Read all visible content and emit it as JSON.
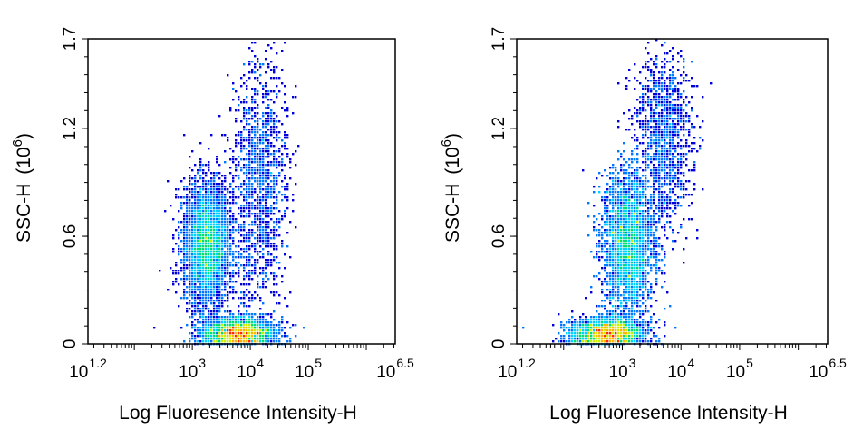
{
  "chart_data": [
    {
      "type": "scatter",
      "subtype": "flow-cytometry density plot",
      "xlabel": "Log Fluoresence Intensity-H",
      "ylabel": "SSC-H",
      "ylabel_unit_base": "(10",
      "ylabel_unit_exp": "6",
      "ylabel_unit_close": ")",
      "x_scale": "log",
      "xlim_log10": [
        1.2,
        6.5
      ],
      "ylim": [
        0,
        1.7
      ],
      "x_ticks": [
        {
          "log": 1.2,
          "base": "10",
          "exp": "1.2"
        },
        {
          "log": 3,
          "base": "10",
          "exp": "3"
        },
        {
          "log": 4,
          "base": "10",
          "exp": "4"
        },
        {
          "log": 5,
          "base": "10",
          "exp": "5"
        },
        {
          "log": 6.5,
          "base": "10",
          "exp": "6.5"
        }
      ],
      "y_ticks": [
        {
          "value": 0,
          "label": "0"
        },
        {
          "value": 0.6,
          "label": "0.6"
        },
        {
          "value": 1.2,
          "label": "1.2"
        },
        {
          "value": 1.7,
          "label": "1.7"
        }
      ],
      "grid": false,
      "legend": "none",
      "colormap": [
        "#0000dd",
        "#0078ff",
        "#00d2ff",
        "#00e070",
        "#c8f000",
        "#ffb400",
        "#ff2a00"
      ],
      "populations": [
        {
          "x_log10": 3.25,
          "y": 0.55,
          "x_spread": 0.2,
          "y_spread": 0.17,
          "peak_density": 1.0
        },
        {
          "x_log10": 3.8,
          "y": 0.06,
          "x_spread": 0.3,
          "y_spread": 0.04,
          "peak_density": 1.0
        },
        {
          "x_log10": 4.15,
          "y": 0.9,
          "x_spread": 0.25,
          "y_spread": 0.35,
          "peak_density": 0.35
        }
      ]
    },
    {
      "type": "scatter",
      "subtype": "flow-cytometry density plot",
      "xlabel": "Log Fluoresence Intensity-H",
      "ylabel": "SSC-H",
      "ylabel_unit_base": "(10",
      "ylabel_unit_exp": "6",
      "ylabel_unit_close": ")",
      "x_scale": "log",
      "xlim_log10": [
        1.2,
        6.5
      ],
      "ylim": [
        0,
        1.7
      ],
      "x_ticks": [
        {
          "log": 1.2,
          "base": "10",
          "exp": "1.2"
        },
        {
          "log": 3,
          "base": "10",
          "exp": "3"
        },
        {
          "log": 4,
          "base": "10",
          "exp": "4"
        },
        {
          "log": 5,
          "base": "10",
          "exp": "5"
        },
        {
          "log": 6.5,
          "base": "10",
          "exp": "6.5"
        }
      ],
      "y_ticks": [
        {
          "value": 0,
          "label": "0"
        },
        {
          "value": 0.6,
          "label": "0.6"
        },
        {
          "value": 1.2,
          "label": "1.2"
        },
        {
          "value": 1.7,
          "label": "1.7"
        }
      ],
      "grid": false,
      "legend": "none",
      "colormap": [
        "#0000dd",
        "#0078ff",
        "#00d2ff",
        "#00e070",
        "#c8f000",
        "#ffb400",
        "#ff2a00"
      ],
      "populations": [
        {
          "x_log10": 3.1,
          "y": 0.55,
          "x_spread": 0.22,
          "y_spread": 0.2,
          "peak_density": 1.0
        },
        {
          "x_log10": 2.75,
          "y": 0.06,
          "x_spread": 0.3,
          "y_spread": 0.04,
          "peak_density": 0.9
        },
        {
          "x_log10": 3.7,
          "y": 1.15,
          "x_spread": 0.25,
          "y_spread": 0.25,
          "peak_density": 0.3
        }
      ]
    }
  ]
}
